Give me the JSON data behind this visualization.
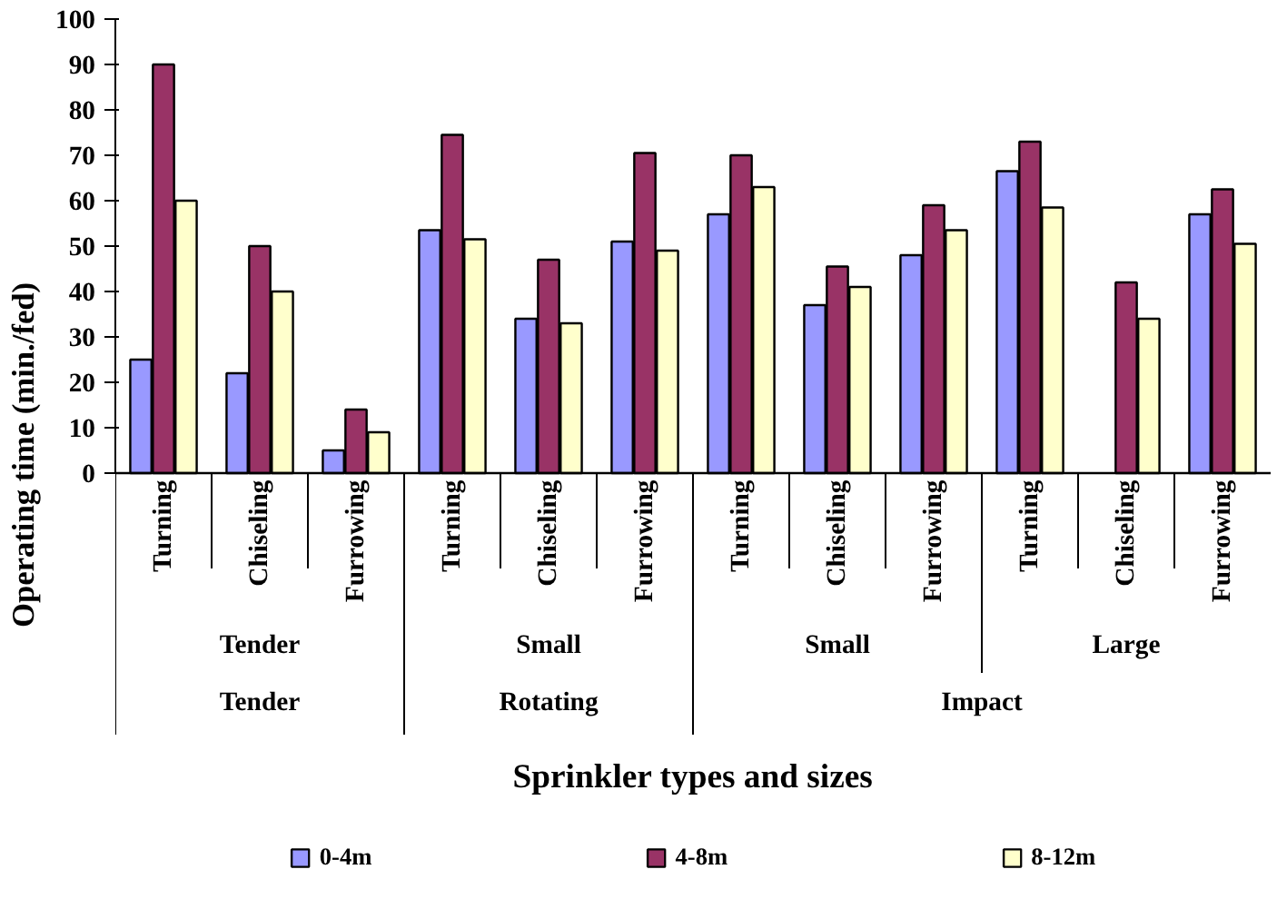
{
  "chart_data": {
    "type": "bar",
    "xlabel": "Sprinkler types and sizes",
    "ylabel": "Operating time (min./fed)",
    "categories": [
      "Turning",
      "Chiseling",
      "Furrowing",
      "Turning",
      "Chiseling",
      "Furrowing",
      "Turning",
      "Chiseling",
      "Furrowing",
      "Turning",
      "Chiseling",
      "Furrowing"
    ],
    "annotations": [
      "Tender",
      "Small",
      "Small",
      "Large",
      "Tender",
      "Rotating",
      "Impact"
    ],
    "series": [
      {
        "name": "0-4m",
        "color": "#9999ff",
        "values": [
          25,
          22,
          5,
          53.5,
          34,
          51,
          57,
          37,
          48,
          66.5,
          null,
          57
        ]
      },
      {
        "name": "4-8m",
        "color": "#993366",
        "values": [
          90,
          50,
          14,
          74.5,
          47,
          70.5,
          70,
          45.5,
          59,
          73,
          42,
          62.5
        ]
      },
      {
        "name": "8-12m",
        "color": "#ffffcc",
        "values": [
          60,
          40,
          9,
          51.5,
          33,
          49,
          63,
          41,
          53.5,
          58.5,
          34,
          50.5
        ]
      }
    ],
    "ylim": [
      0,
      100
    ],
    "yticks": [
      0,
      10,
      20,
      30,
      40,
      50,
      60,
      70,
      80,
      90,
      100
    ],
    "grid": false,
    "legend": "bottom"
  }
}
